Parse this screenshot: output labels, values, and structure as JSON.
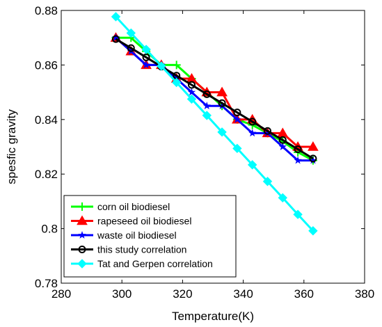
{
  "chart_data": {
    "type": "line",
    "xlabel": "Temperature(K)",
    "ylabel": "spesfic gravity",
    "xlim": [
      280,
      380
    ],
    "ylim": [
      0.78,
      0.88
    ],
    "xticks": [
      "280",
      "300",
      "320",
      "340",
      "360",
      "380"
    ],
    "yticks": [
      "0.78",
      "0.8",
      "0.82",
      "0.84",
      "0.86",
      "0.88"
    ],
    "legend_position": "bottom-left",
    "series": [
      {
        "name": "corn oil biodiesel",
        "color": "#00ff00",
        "marker": "plus",
        "x": [
          298,
          303,
          308,
          313,
          318,
          323,
          328,
          333,
          338,
          343,
          348,
          353,
          358,
          363
        ],
        "y": [
          0.87,
          0.87,
          0.865,
          0.86,
          0.86,
          0.855,
          0.85,
          0.845,
          0.84,
          0.838,
          0.835,
          0.832,
          0.828,
          0.825
        ]
      },
      {
        "name": "rapeseed oil biodiesel",
        "color": "#ff0000",
        "marker": "triangle",
        "x": [
          298,
          303,
          308,
          313,
          318,
          323,
          328,
          333,
          338,
          343,
          348,
          353,
          358,
          363
        ],
        "y": [
          0.87,
          0.865,
          0.86,
          0.86,
          0.855,
          0.855,
          0.85,
          0.85,
          0.84,
          0.84,
          0.835,
          0.835,
          0.83,
          0.83
        ]
      },
      {
        "name": "waste oil biodiesel",
        "color": "#0000ff",
        "marker": "star",
        "x": [
          298,
          303,
          308,
          313,
          318,
          323,
          328,
          333,
          338,
          343,
          348,
          353,
          358,
          363
        ],
        "y": [
          0.87,
          0.865,
          0.86,
          0.86,
          0.855,
          0.85,
          0.845,
          0.845,
          0.84,
          0.835,
          0.835,
          0.83,
          0.825,
          0.825
        ]
      },
      {
        "name": "this study correlation",
        "color": "#000000",
        "marker": "circle",
        "x": [
          298,
          303,
          308,
          313,
          318,
          323,
          328,
          333,
          338,
          343,
          348,
          353,
          358,
          363
        ],
        "y": [
          0.8695,
          0.8662,
          0.8628,
          0.8594,
          0.8561,
          0.8527,
          0.8493,
          0.846,
          0.8426,
          0.8392,
          0.8358,
          0.8325,
          0.8291,
          0.8257
        ]
      },
      {
        "name": "Tat and Gerpen correlation",
        "color": "#00ffff",
        "marker": "diamond",
        "x": [
          298,
          303,
          308,
          313,
          318,
          323,
          328,
          333,
          338,
          343,
          348,
          353,
          358,
          363
        ],
        "y": [
          0.8777,
          0.8717,
          0.8657,
          0.8596,
          0.8536,
          0.8475,
          0.8415,
          0.8354,
          0.8294,
          0.8234,
          0.8173,
          0.8113,
          0.8052,
          0.7992
        ]
      }
    ]
  }
}
